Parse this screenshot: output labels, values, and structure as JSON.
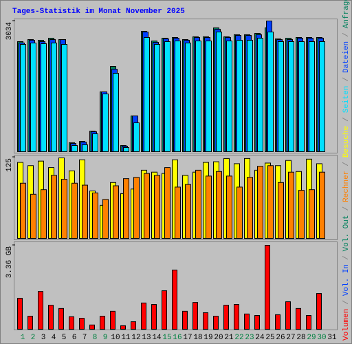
{
  "title": "Tages-Statistik im Monat November 2025",
  "legend_separator": "/",
  "chart_data": [
    {
      "type": "bar",
      "ylim": [
        0,
        3034
      ],
      "yticks": [
        3034
      ],
      "categories": [
        "1",
        "2",
        "3",
        "4",
        "5",
        "6",
        "7",
        "8",
        "9",
        "10",
        "11",
        "12",
        "13",
        "14",
        "15",
        "16",
        "17",
        "18",
        "19",
        "20",
        "21",
        "22",
        "23",
        "24",
        "25",
        "26",
        "27",
        "28",
        "29",
        "30",
        "31"
      ],
      "category_colors": [
        "#008040",
        "#008040",
        "#000000",
        "#000000",
        "#000000",
        "#000000",
        "#000000",
        "#008040",
        "#008040",
        "#000000",
        "#000000",
        "#000000",
        "#000000",
        "#000000",
        "#008040",
        "#008040",
        "#000000",
        "#000000",
        "#000000",
        "#000000",
        "#000000",
        "#008040",
        "#008040",
        "#000000",
        "#000000",
        "#000000",
        "#000000",
        "#000000",
        "#008040",
        "#008040",
        "#000000"
      ],
      "series": [
        {
          "name": "Anfragen",
          "color": "#00805c",
          "values": [
            2555,
            2603,
            2587,
            2635,
            2603,
            208,
            240,
            479,
            1389,
            1980,
            144,
            831,
            2795,
            2571,
            2635,
            2651,
            2603,
            2667,
            2667,
            2875,
            2667,
            2715,
            2715,
            2747,
            2875,
            2619,
            2635,
            2651,
            2651,
            2651,
            null
          ]
        },
        {
          "name": "Dateien",
          "color": "#0040ff",
          "values": [
            2523,
            2587,
            2555,
            2603,
            2603,
            192,
            224,
            463,
            1389,
            1916,
            128,
            831,
            2779,
            2539,
            2619,
            2635,
            2587,
            2651,
            2651,
            2843,
            2651,
            2699,
            2699,
            2715,
            3034,
            2603,
            2603,
            2635,
            2635,
            2635,
            null
          ]
        },
        {
          "name": "Seiten",
          "color": "#00e0ff",
          "values": [
            2491,
            2523,
            2507,
            2523,
            2491,
            144,
            160,
            415,
            1341,
            1820,
            96,
            671,
            2651,
            2491,
            2555,
            2571,
            2523,
            2571,
            2571,
            2779,
            2571,
            2587,
            2587,
            2635,
            2779,
            2555,
            2555,
            2555,
            2555,
            2555,
            null
          ]
        }
      ]
    },
    {
      "type": "bar",
      "ylim": [
        0,
        125
      ],
      "yticks": [
        125
      ],
      "series": [
        {
          "name": "Besuche",
          "color": "#ffff00",
          "values": [
            117,
            112,
            119,
            109,
            124,
            104,
            121,
            73,
            51,
            86,
            69,
            76,
            105,
            102,
            100,
            121,
            97,
            102,
            117,
            118,
            123,
            115,
            123,
            105,
            116,
            112,
            120,
            103,
            122,
            115,
            null
          ]
        },
        {
          "name": "Rechner",
          "color": "#ff8000",
          "values": [
            85,
            68,
            75,
            97,
            91,
            85,
            82,
            70,
            60,
            81,
            92,
            94,
            100,
            97,
            109,
            79,
            83,
            105,
            96,
            103,
            96,
            79,
            94,
            111,
            112,
            86,
            102,
            74,
            75,
            102,
            null
          ]
        }
      ]
    },
    {
      "type": "bar",
      "ylim": [
        0,
        3.36
      ],
      "yticks": [
        {
          "value": 3.36,
          "label": "3.36 GB"
        }
      ],
      "series": [
        {
          "name": "Volumen",
          "color": "#ff0000",
          "values": [
            1.24,
            0.52,
            1.51,
            0.96,
            0.83,
            0.5,
            0.44,
            0.17,
            0.52,
            0.72,
            0.14,
            0.3,
            1.05,
            0.99,
            1.54,
            2.37,
            0.72,
            1.07,
            0.66,
            0.52,
            0.96,
            0.99,
            0.61,
            0.55,
            3.36,
            0.58,
            1.1,
            0.83,
            0.55,
            1.43,
            null
          ]
        }
      ],
      "legend_only": [
        {
          "name": "Vol. In",
          "color": "#0040ff"
        },
        {
          "name": "Vol. Out",
          "color": "#00805c"
        }
      ]
    }
  ]
}
